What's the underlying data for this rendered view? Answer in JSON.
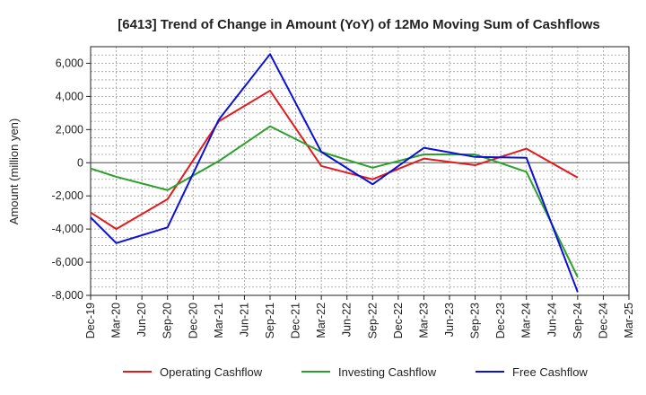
{
  "chart_data": {
    "type": "line",
    "title": "[6413]  Trend of Change in Amount (YoY) of 12Mo Moving Sum of Cashflows",
    "xlabel": "",
    "ylabel": "Amount (million yen)",
    "ylim": [
      -8000,
      7000
    ],
    "yticks": [
      -8000,
      -6000,
      -4000,
      -2000,
      0,
      2000,
      4000,
      6000
    ],
    "ytick_labels": [
      "-8,000",
      "-6,000",
      "-4,000",
      "-2,000",
      "0",
      "2,000",
      "4,000",
      "6,000"
    ],
    "categories": [
      "Dec-19",
      "Mar-20",
      "Jun-20",
      "Sep-20",
      "Dec-20",
      "Mar-21",
      "Jun-21",
      "Sep-21",
      "Dec-21",
      "Mar-22",
      "Jun-22",
      "Sep-22",
      "Dec-22",
      "Mar-23",
      "Jun-23",
      "Sep-23",
      "Dec-23",
      "Mar-24",
      "Jun-24",
      "Sep-24",
      "Dec-24",
      "Mar-25"
    ],
    "grid": true,
    "legend_position": "bottom",
    "series": [
      {
        "name": "Operating Cashflow",
        "color": "#e31a1c",
        "values": [
          -3000,
          -4000,
          null,
          -2200,
          null,
          2500,
          null,
          4350,
          null,
          -200,
          null,
          -1000,
          null,
          250,
          null,
          -150,
          null,
          850,
          null,
          -900,
          null,
          null
        ]
      },
      {
        "name": "Investing Cashflow",
        "color": "#2ca02c",
        "values": [
          -350,
          -850,
          null,
          -1650,
          null,
          100,
          null,
          2200,
          null,
          650,
          null,
          -300,
          null,
          500,
          null,
          500,
          null,
          -550,
          null,
          -6900,
          null,
          null
        ]
      },
      {
        "name": "Free Cashflow",
        "color": "#0a10d8",
        "values": [
          -3300,
          -4850,
          null,
          -3900,
          null,
          2600,
          null,
          6550,
          null,
          650,
          null,
          -1300,
          null,
          900,
          null,
          350,
          null,
          300,
          null,
          -7800,
          null,
          null
        ]
      }
    ]
  }
}
